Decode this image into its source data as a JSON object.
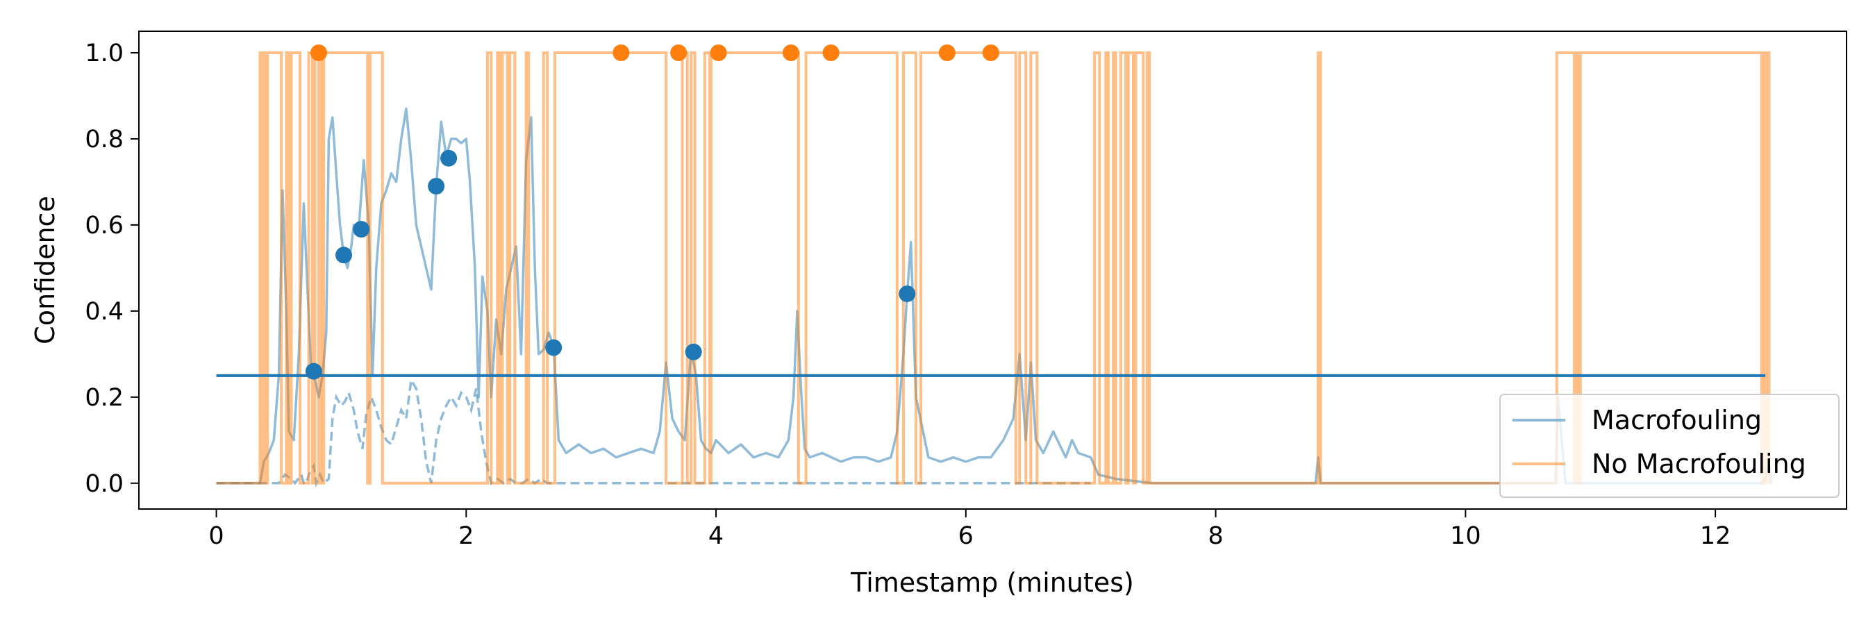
{
  "chart_data": {
    "type": "line",
    "title": "",
    "xlabel": "Timestamp (minutes)",
    "ylabel": "Confidence",
    "xlim": [
      -0.62,
      13.05
    ],
    "ylim": [
      -0.06,
      1.05
    ],
    "x_ticks": [
      0,
      2,
      4,
      6,
      8,
      10,
      12
    ],
    "y_ticks": [
      0.0,
      0.2,
      0.4,
      0.6,
      0.8,
      1.0
    ],
    "x_tick_labels": [
      "0",
      "2",
      "4",
      "6",
      "8",
      "10",
      "12"
    ],
    "y_tick_labels": [
      "0.0",
      "0.2",
      "0.4",
      "0.6",
      "0.8",
      "1.0"
    ],
    "grid": false,
    "legend_position": "lower-right",
    "colors": {
      "macrofouling": "#1f77b4",
      "no_macrofouling": "#ff7f0e"
    },
    "threshold": {
      "y": 0.25,
      "x_range": [
        0,
        12.4
      ]
    },
    "series": [
      {
        "name": "Macrofouling",
        "style": "solid",
        "x": [
          0,
          0.35,
          0.38,
          0.42,
          0.46,
          0.5,
          0.53,
          0.56,
          0.58,
          0.62,
          0.66,
          0.7,
          0.73,
          0.76,
          0.79,
          0.82,
          0.85,
          0.88,
          0.9,
          0.93,
          0.96,
          0.99,
          1.02,
          1.05,
          1.08,
          1.1,
          1.14,
          1.18,
          1.22,
          1.25,
          1.28,
          1.32,
          1.36,
          1.4,
          1.44,
          1.48,
          1.52,
          1.56,
          1.6,
          1.64,
          1.68,
          1.72,
          1.76,
          1.8,
          1.84,
          1.88,
          1.92,
          1.96,
          2.0,
          2.03,
          2.07,
          2.1,
          2.13,
          2.17,
          2.2,
          2.24,
          2.28,
          2.32,
          2.36,
          2.4,
          2.44,
          2.48,
          2.52,
          2.55,
          2.58,
          2.62,
          2.66,
          2.7,
          2.74,
          2.8,
          2.9,
          3.0,
          3.1,
          3.2,
          3.3,
          3.4,
          3.5,
          3.55,
          3.6,
          3.65,
          3.7,
          3.75,
          3.8,
          3.84,
          3.88,
          3.92,
          3.96,
          4.0,
          4.1,
          4.2,
          4.3,
          4.4,
          4.5,
          4.58,
          4.62,
          4.65,
          4.68,
          4.71,
          4.75,
          4.85,
          5.0,
          5.1,
          5.2,
          5.3,
          5.4,
          5.45,
          5.5,
          5.53,
          5.56,
          5.6,
          5.7,
          5.8,
          5.9,
          6.0,
          6.1,
          6.2,
          6.3,
          6.38,
          6.43,
          6.48,
          6.52,
          6.56,
          6.62,
          6.7,
          6.8,
          6.85,
          6.9,
          7.0,
          7.03,
          7.06,
          7.2,
          7.5,
          8.0,
          8.8,
          8.82,
          8.84,
          9.0,
          10.0,
          10.7,
          10.72,
          10.74,
          10.8,
          12.0,
          12.38,
          12.4,
          12.43,
          12.45
        ],
        "y": [
          0.0,
          0.0,
          0.05,
          0.07,
          0.1,
          0.25,
          0.68,
          0.4,
          0.12,
          0.1,
          0.3,
          0.65,
          0.45,
          0.26,
          0.24,
          0.2,
          0.25,
          0.35,
          0.8,
          0.85,
          0.72,
          0.6,
          0.53,
          0.5,
          0.55,
          0.6,
          0.59,
          0.75,
          0.6,
          0.25,
          0.5,
          0.65,
          0.68,
          0.72,
          0.7,
          0.8,
          0.87,
          0.75,
          0.6,
          0.55,
          0.5,
          0.45,
          0.69,
          0.84,
          0.76,
          0.8,
          0.8,
          0.79,
          0.8,
          0.7,
          0.5,
          0.2,
          0.48,
          0.4,
          0.2,
          0.38,
          0.3,
          0.45,
          0.5,
          0.55,
          0.3,
          0.75,
          0.85,
          0.5,
          0.3,
          0.31,
          0.35,
          0.32,
          0.1,
          0.07,
          0.09,
          0.07,
          0.08,
          0.06,
          0.07,
          0.08,
          0.07,
          0.12,
          0.28,
          0.15,
          0.12,
          0.1,
          0.31,
          0.25,
          0.1,
          0.08,
          0.07,
          0.1,
          0.07,
          0.09,
          0.06,
          0.07,
          0.06,
          0.1,
          0.2,
          0.4,
          0.22,
          0.08,
          0.06,
          0.07,
          0.05,
          0.06,
          0.06,
          0.05,
          0.06,
          0.12,
          0.3,
          0.44,
          0.56,
          0.2,
          0.06,
          0.05,
          0.06,
          0.05,
          0.06,
          0.06,
          0.1,
          0.15,
          0.3,
          0.1,
          0.28,
          0.1,
          0.07,
          0.12,
          0.06,
          0.1,
          0.07,
          0.06,
          0.04,
          0.02,
          0.01,
          0.0,
          0.0,
          0.0,
          0.06,
          0.0,
          0.0,
          0.0,
          0.0,
          0.0,
          0.2,
          0.0,
          0.0,
          0.0,
          0.01,
          0.05,
          0.0
        ]
      },
      {
        "name": "No Macrofouling",
        "style": "step",
        "transitions": [
          0.35,
          0.37,
          0.38,
          0.4,
          0.41,
          0.52,
          0.56,
          0.58,
          0.6,
          0.67,
          0.74,
          0.77,
          0.79,
          0.82,
          0.83,
          0.85,
          0.86,
          1.21,
          1.23,
          1.33,
          2.17,
          2.2,
          2.25,
          2.27,
          2.29,
          2.33,
          2.35,
          2.39,
          2.48,
          2.5,
          2.62,
          2.65,
          2.71,
          3.6,
          3.73,
          3.77,
          3.8,
          3.83,
          3.91,
          3.95,
          3.96,
          4.66,
          4.72,
          5.45,
          5.5,
          5.6,
          5.64,
          6.4,
          6.43,
          6.48,
          6.52,
          6.57,
          7.03,
          7.07,
          7.12,
          7.14,
          7.18,
          7.2,
          7.24,
          7.28,
          7.3,
          7.34,
          7.36,
          7.42,
          7.45,
          7.47,
          8.82,
          8.84,
          10.73,
          10.87,
          10.88,
          10.9,
          10.92,
          12.37,
          12.38,
          12.39,
          12.41,
          12.43
        ],
        "initial_value": 0,
        "end": 12.45
      },
      {
        "name": "",
        "style": "dashed",
        "x": [
          0,
          0.5,
          0.55,
          0.6,
          0.63,
          0.68,
          0.7,
          0.72,
          0.74,
          0.76,
          0.78,
          0.8,
          0.83,
          0.86,
          0.9,
          0.93,
          0.96,
          1.0,
          1.03,
          1.06,
          1.1,
          1.13,
          1.17,
          1.2,
          1.24,
          1.28,
          1.32,
          1.36,
          1.4,
          1.44,
          1.48,
          1.52,
          1.56,
          1.6,
          1.64,
          1.68,
          1.72,
          1.76,
          1.8,
          1.84,
          1.88,
          1.92,
          1.96,
          2.0,
          2.04,
          2.08,
          2.12,
          2.16,
          2.2,
          2.25,
          2.3,
          2.35,
          2.4,
          2.45,
          2.5,
          2.55,
          2.6,
          2.65,
          2.7,
          2.75,
          3.0,
          5.0,
          7.0
        ],
        "y": [
          0.0,
          0.0,
          0.02,
          0.01,
          0.0,
          0.02,
          0.0,
          0.0,
          0.02,
          0.03,
          0.04,
          0.0,
          0.02,
          0.0,
          0.01,
          0.15,
          0.2,
          0.18,
          0.19,
          0.21,
          0.17,
          0.12,
          0.08,
          0.16,
          0.2,
          0.17,
          0.13,
          0.1,
          0.09,
          0.13,
          0.17,
          0.15,
          0.24,
          0.22,
          0.15,
          0.05,
          0.0,
          0.1,
          0.15,
          0.18,
          0.2,
          0.18,
          0.21,
          0.2,
          0.17,
          0.22,
          0.12,
          0.05,
          0.0,
          0.01,
          0.0,
          0.01,
          0.0,
          0.0,
          0.01,
          0.0,
          0.01,
          0.0,
          0.0,
          0.0,
          0.0,
          0.0,
          0.0
        ]
      }
    ],
    "markers_macrofouling": {
      "x": [
        0.78,
        1.02,
        1.16,
        1.76,
        1.86,
        2.7,
        3.82,
        5.53
      ],
      "y": [
        0.26,
        0.53,
        0.59,
        0.69,
        0.755,
        0.315,
        0.305,
        0.44
      ]
    },
    "markers_no_macrofouling": {
      "x": [
        0.82,
        3.24,
        3.7,
        4.02,
        4.6,
        4.92,
        5.85,
        6.2
      ],
      "y": [
        1.0,
        1.0,
        1.0,
        1.0,
        1.0,
        1.0,
        1.0,
        1.0
      ]
    },
    "legend": [
      {
        "label": "Macrofouling",
        "color": "#1f77b4"
      },
      {
        "label": "No Macrofouling",
        "color": "#ff7f0e"
      }
    ]
  }
}
